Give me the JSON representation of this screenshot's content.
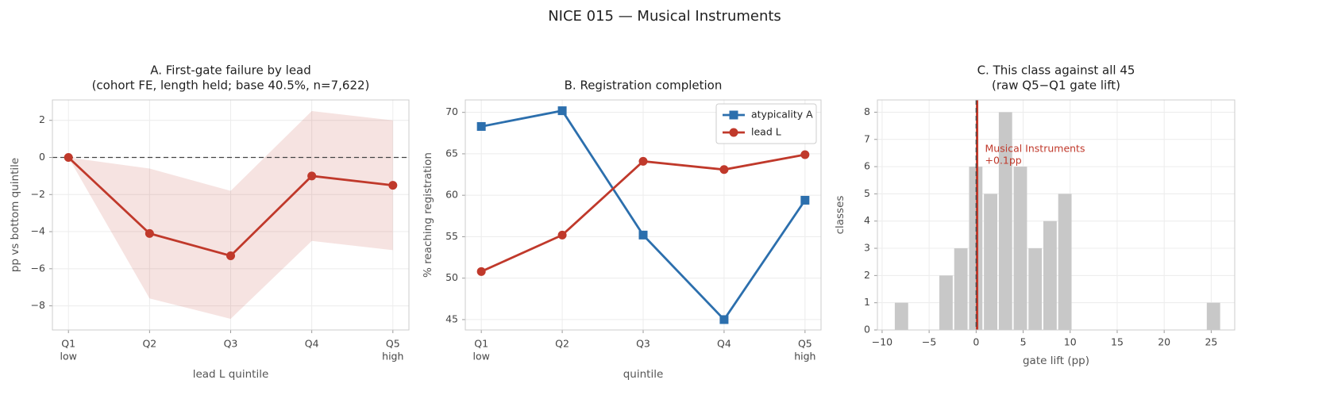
{
  "title": "NICE 015 — Musical Instruments",
  "chart_data": [
    {
      "type": "line",
      "title_lines": [
        "A. First-gate failure by lead",
        "(cohort FE, length held; base 40.5%, n=7,622)"
      ],
      "xlabel": "lead L quintile",
      "ylabel": "pp vs bottom quintile",
      "categories": [
        "Q1",
        "Q2",
        "Q3",
        "Q4",
        "Q5"
      ],
      "category_sublabels": [
        "low",
        null,
        null,
        null,
        "high"
      ],
      "series": [
        {
          "name": "lead L",
          "color": "#c0392b",
          "marker": "circle",
          "values": [
            0,
            -4.1,
            -5.3,
            -1.0,
            -1.5
          ],
          "band_lower": [
            0,
            -7.6,
            -8.7,
            -4.5,
            -5.0
          ],
          "band_upper": [
            0,
            -0.6,
            -1.8,
            2.5,
            2.0
          ]
        }
      ],
      "reference_line": 0,
      "ylim": [
        -9.3,
        3.1
      ],
      "yticks": [
        {
          "value": -8,
          "label": "−8"
        },
        {
          "value": -6,
          "label": "−6"
        },
        {
          "value": -4,
          "label": "−4"
        },
        {
          "value": -2,
          "label": "−2"
        },
        0,
        2
      ],
      "grid": true,
      "legend": false
    },
    {
      "type": "line",
      "title_lines": [
        "B. Registration completion"
      ],
      "xlabel": "quintile",
      "ylabel": "% reaching registration",
      "categories": [
        "Q1",
        "Q2",
        "Q3",
        "Q4",
        "Q5"
      ],
      "category_sublabels": [
        "low",
        null,
        null,
        null,
        "high"
      ],
      "series": [
        {
          "name": "atypicality A",
          "color": "#2c6fad",
          "marker": "square",
          "values": [
            68.3,
            70.2,
            55.2,
            45.0,
            59.4
          ]
        },
        {
          "name": "lead L",
          "color": "#c0392b",
          "marker": "circle",
          "values": [
            50.8,
            55.2,
            64.1,
            63.1,
            64.9
          ]
        }
      ],
      "ylim": [
        43.75,
        71.5
      ],
      "yticks": [
        45,
        50,
        55,
        60,
        65,
        70
      ],
      "grid": true,
      "legend": "upper right"
    },
    {
      "type": "histogram",
      "title_lines": [
        "C. This class against all 45",
        "(raw Q5−Q1 gate lift)"
      ],
      "xlabel": "gate lift (pp)",
      "ylabel": "classes",
      "bins": [
        -8.73,
        -7.15,
        -5.57,
        -3.99,
        -2.41,
        -0.83,
        0.75,
        2.33,
        3.91,
        5.49,
        7.07,
        8.65,
        10.23,
        11.81,
        13.39,
        14.97,
        16.55,
        18.13,
        19.71,
        21.29,
        22.87,
        24.45,
        26.03
      ],
      "counts": [
        1,
        0,
        0,
        2,
        3,
        6,
        5,
        8,
        6,
        3,
        4,
        5,
        0,
        0,
        0,
        0,
        0,
        0,
        0,
        0,
        0,
        1
      ],
      "color": "#c8c8c8",
      "reference_line": 0,
      "highlight": {
        "value": 0.1,
        "color": "#c0392b",
        "label_lines": [
          "Musical Instruments",
          "+0.1pp"
        ]
      },
      "xlim": [
        -10.5,
        27.5
      ],
      "xticks": [
        {
          "value": -10,
          "label": "−10"
        },
        {
          "value": -5,
          "label": "−5"
        },
        0,
        5,
        10,
        15,
        20,
        25
      ],
      "ylim": [
        0,
        8.45
      ],
      "yticks": [
        0,
        1,
        2,
        3,
        4,
        5,
        6,
        7,
        8
      ],
      "grid": true,
      "legend": false
    }
  ]
}
